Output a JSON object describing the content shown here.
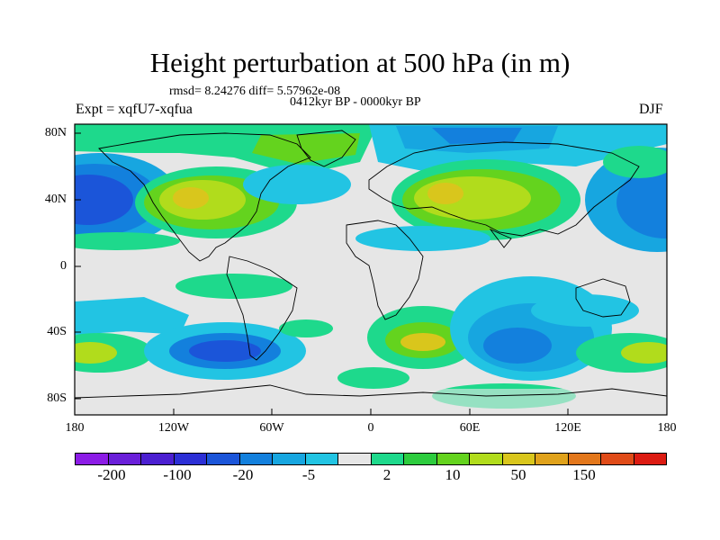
{
  "title": "Height perturbation at 500 hPa (in m)",
  "stats": "rmsd= 8.24276 diff= 5.57962e-08",
  "period": "0412kyr BP - 0000kyr BP",
  "experiment": "Expt = xqfU7-xqfua",
  "season": "DJF",
  "map": {
    "lat_ticks": [
      "80N",
      "40N",
      "0",
      "40S",
      "80S"
    ],
    "lon_ticks": [
      "180",
      "120W",
      "60W",
      "0",
      "60E",
      "120E",
      "180"
    ]
  },
  "legend": {
    "colors": [
      "#8c1ce6",
      "#6a1fd9",
      "#4b1fd1",
      "#2c2fd6",
      "#1b55d9",
      "#1380dd",
      "#17a6e0",
      "#22c4e3",
      "#e6e6e6",
      "#1ed98c",
      "#2dcc3e",
      "#64d31e",
      "#b1dc1c",
      "#d9c61c",
      "#e0a21b",
      "#e3771b",
      "#e04b18",
      "#dc1b12"
    ],
    "labels": [
      "-200",
      "-100",
      "-20",
      "-5",
      "2",
      "10",
      "50",
      "150"
    ]
  }
}
